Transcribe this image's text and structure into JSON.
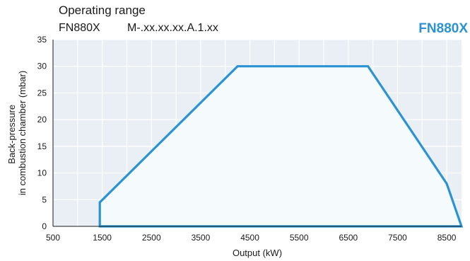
{
  "header": {
    "title": "Operating range",
    "model": "FN880X",
    "code": "M-.xx.xx.xx.A.1.xx",
    "brand": "FN880X"
  },
  "colors": {
    "plot_background": "#e9eff5",
    "grid": "#ffffff",
    "region_fill": "#f5fafc",
    "region_stroke": "#2b93d2",
    "axis": "#1a1a1a"
  },
  "chart_data": {
    "type": "area",
    "title": "Operating range",
    "xlabel": "Output (kW)",
    "ylabel_lines": [
      "Back-pressure",
      "in combustion chamber (mbar)"
    ],
    "xlim": [
      500,
      8800
    ],
    "ylim": [
      0,
      35
    ],
    "x_ticks": [
      500,
      1500,
      2500,
      3500,
      4500,
      5500,
      6500,
      7500,
      8500
    ],
    "y_ticks": [
      0,
      5,
      10,
      15,
      20,
      25,
      30,
      35
    ],
    "x_grid_step": 500,
    "grid": true,
    "series": [
      {
        "x": [
          1450,
          1450,
          4250,
          6900,
          8500,
          8800,
          1450
        ],
        "y": [
          0,
          4.5,
          30,
          30,
          8,
          0,
          0
        ]
      }
    ]
  }
}
